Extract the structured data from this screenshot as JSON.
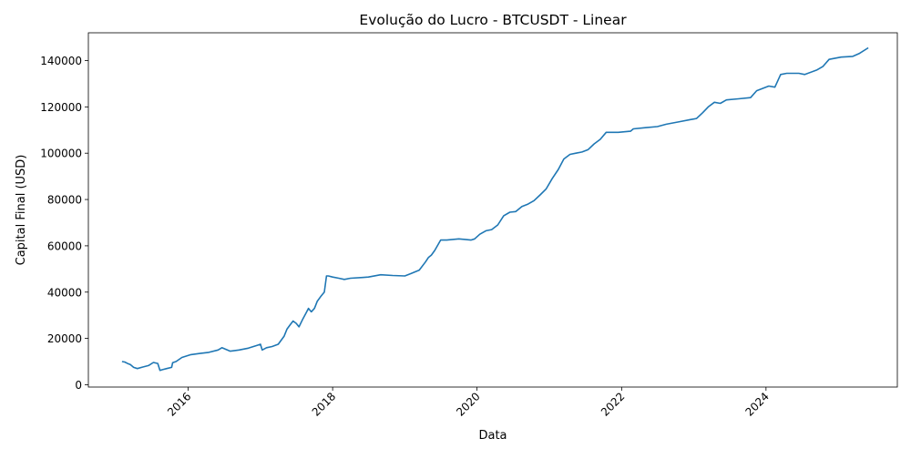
{
  "chart_data": {
    "type": "line",
    "title": "Evolução do Lucro - BTCUSDT - Linear",
    "xlabel": "Data",
    "ylabel": "Capital Final (USD)",
    "x_ticks": [
      "2016",
      "2018",
      "2020",
      "2022",
      "2024"
    ],
    "y_ticks": [
      "0",
      "20000",
      "40000",
      "60000",
      "80000",
      "100000",
      "120000",
      "140000"
    ],
    "xlim": [
      "2014-08-15",
      "2025-10-26"
    ],
    "ylim": [
      -1000,
      152000
    ],
    "grid": false,
    "line_color": "#1f77b4",
    "series": [
      {
        "x": [
          "2015-02-01",
          "2015-02-15",
          "2015-03-01",
          "2015-03-15",
          "2015-04-01",
          "2015-04-20",
          "2015-05-15",
          "2015-06-15",
          "2015-07-10",
          "2015-08-01",
          "2015-08-12",
          "2015-08-25",
          "2015-09-15",
          "2015-10-10",
          "2015-10-15",
          "2015-11-01",
          "2015-12-01",
          "2016-01-15",
          "2016-03-01",
          "2016-04-15",
          "2016-06-01",
          "2016-06-20",
          "2016-08-01",
          "2016-09-15",
          "2016-11-01",
          "2016-12-15",
          "2017-01-01",
          "2017-01-10",
          "2017-02-01",
          "2017-03-01",
          "2017-04-01",
          "2017-05-01",
          "2017-05-15",
          "2017-06-01",
          "2017-06-15",
          "2017-07-01",
          "2017-07-15",
          "2017-08-01",
          "2017-08-20",
          "2017-09-01",
          "2017-09-15",
          "2017-10-01",
          "2017-10-15",
          "2017-11-01",
          "2017-11-20",
          "2017-12-01",
          "2017-12-10",
          "2018-01-01",
          "2018-02-01",
          "2018-03-01",
          "2018-04-01",
          "2018-06-01",
          "2018-07-01",
          "2018-09-01",
          "2018-11-01",
          "2019-01-01",
          "2019-02-01",
          "2019-03-15",
          "2019-04-15",
          "2019-05-01",
          "2019-05-15",
          "2019-06-01",
          "2019-07-01",
          "2019-08-01",
          "2019-10-01",
          "2019-12-01",
          "2019-12-20",
          "2020-01-15",
          "2020-02-15",
          "2020-03-15",
          "2020-04-15",
          "2020-05-15",
          "2020-06-15",
          "2020-07-15",
          "2020-08-15",
          "2020-09-15",
          "2020-10-15",
          "2020-11-15",
          "2020-12-15",
          "2021-01-15",
          "2021-02-15",
          "2021-03-15",
          "2021-04-15",
          "2021-05-15",
          "2021-06-15",
          "2021-07-15",
          "2021-08-15",
          "2021-09-15",
          "2021-10-15",
          "2021-12-15",
          "2022-02-15",
          "2022-03-01",
          "2022-05-01",
          "2022-07-01",
          "2022-08-15",
          "2022-10-15",
          "2022-12-15",
          "2023-01-15",
          "2023-02-15",
          "2023-03-15",
          "2023-04-15",
          "2023-05-15",
          "2023-06-15",
          "2023-08-15",
          "2023-10-15",
          "2023-11-15",
          "2024-01-15",
          "2024-02-15",
          "2024-03-15",
          "2024-04-15",
          "2024-06-15",
          "2024-07-15",
          "2024-09-15",
          "2024-10-15",
          "2024-11-15",
          "2025-01-15",
          "2025-03-15",
          "2025-04-15",
          "2025-06-01"
        ],
        "y": [
          10000,
          9800,
          9200,
          8700,
          7500,
          7000,
          7600,
          8300,
          9600,
          9200,
          6200,
          6500,
          7000,
          7500,
          9500,
          10000,
          11800,
          13000,
          13500,
          14000,
          15000,
          16000,
          14500,
          15000,
          15800,
          17000,
          17500,
          15000,
          16000,
          16500,
          17500,
          21000,
          24000,
          26000,
          27500,
          26500,
          25000,
          28000,
          31000,
          33000,
          31500,
          33000,
          36000,
          38000,
          40000,
          47000,
          47000,
          46500,
          46000,
          45500,
          46000,
          46300,
          46500,
          47500,
          47200,
          47000,
          48000,
          49500,
          53000,
          55000,
          56000,
          58000,
          62500,
          62500,
          63000,
          62500,
          63000,
          65000,
          66500,
          67000,
          69000,
          73000,
          74500,
          74800,
          77000,
          78000,
          79500,
          82000,
          84500,
          89000,
          93000,
          97500,
          99500,
          100000,
          100500,
          101500,
          104000,
          106000,
          109000,
          109000,
          109500,
          110500,
          111000,
          111500,
          112500,
          113500,
          114500,
          115000,
          117500,
          120000,
          122000,
          121500,
          123000,
          123500,
          124000,
          127000,
          129000,
          128500,
          134000,
          134500,
          134500,
          134000,
          136000,
          137500,
          140500,
          141500,
          141800,
          143000,
          145500
        ]
      }
    ]
  }
}
